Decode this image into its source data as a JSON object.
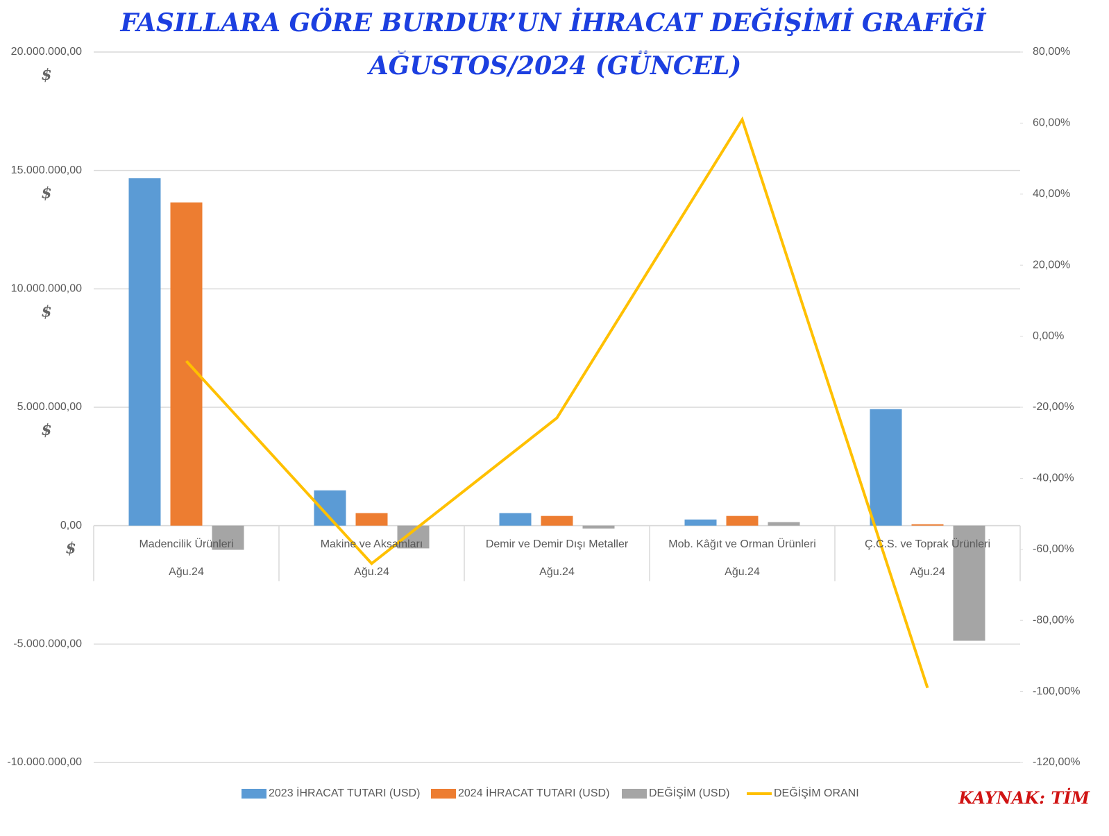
{
  "chart_data": {
    "type": "bar",
    "title": "FASILLARA GÖRE BURDUR’UN İHRACAT DEĞİŞİMİ GRAFİĞİ",
    "subtitle": "AĞUSTOS/2024 (GÜNCEL)",
    "source": "KAYNAK: TİM",
    "ytick_unit": "$",
    "categories": [
      "Madencilik Ürünleri",
      "Makine ve Aksamları",
      "Demir ve Demir Dışı Metaller",
      "Mob. Kâğıt ve Orman Ürünleri",
      "Ç.C.S. ve Toprak Ürünleri"
    ],
    "category_groups": [
      "Ağu.24",
      "Ağu.24",
      "Ağu.24",
      "Ağu.24",
      "Ağu.24"
    ],
    "series": [
      {
        "name": "2023 İHRACAT TUTARI (USD)",
        "color": "#5b9bd5",
        "values": [
          14670000,
          1490000,
          530000,
          260000,
          4920000
        ]
      },
      {
        "name": "2024 İHRACAT TUTARI (USD)",
        "color": "#ed7d31",
        "values": [
          13650000,
          530000,
          410000,
          410000,
          60000
        ]
      },
      {
        "name": "DEĞİŞİM (USD)",
        "color": "#a5a5a5",
        "values": [
          -1020000,
          -960000,
          -120000,
          150000,
          -4860000
        ]
      },
      {
        "name": "DEĞİŞİM ORANI",
        "color": "#ffc000",
        "type": "line",
        "axis": "y2",
        "values": [
          -7,
          -64,
          -23,
          61,
          -99
        ]
      }
    ],
    "ylim": [
      -10000000,
      20000000
    ],
    "yticks": [
      {
        "value": -10000000,
        "label": "-10.000.000,00"
      },
      {
        "value": -5000000,
        "label": "-5.000.000,00"
      },
      {
        "value": 0,
        "label": "0,00"
      },
      {
        "value": 5000000,
        "label": "5.000.000,00"
      },
      {
        "value": 10000000,
        "label": "10.000.000,00"
      },
      {
        "value": 15000000,
        "label": "15.000.000,00"
      },
      {
        "value": 20000000,
        "label": "20.000.000,00"
      }
    ],
    "y2lim": [
      -120,
      80
    ],
    "y2ticks": [
      {
        "value": -120,
        "label": "-120,00%"
      },
      {
        "value": -100,
        "label": "-100,00%"
      },
      {
        "value": -80,
        "label": "-80,00%"
      },
      {
        "value": -60,
        "label": "-60,00%"
      },
      {
        "value": -40,
        "label": "-40,00%"
      },
      {
        "value": -20,
        "label": "-20,00%"
      },
      {
        "value": 0,
        "label": "0,00%"
      },
      {
        "value": 20,
        "label": "20,00%"
      },
      {
        "value": 40,
        "label": "40,00%"
      },
      {
        "value": 60,
        "label": "60,00%"
      },
      {
        "value": 80,
        "label": "80,00%"
      }
    ],
    "grid": true
  }
}
